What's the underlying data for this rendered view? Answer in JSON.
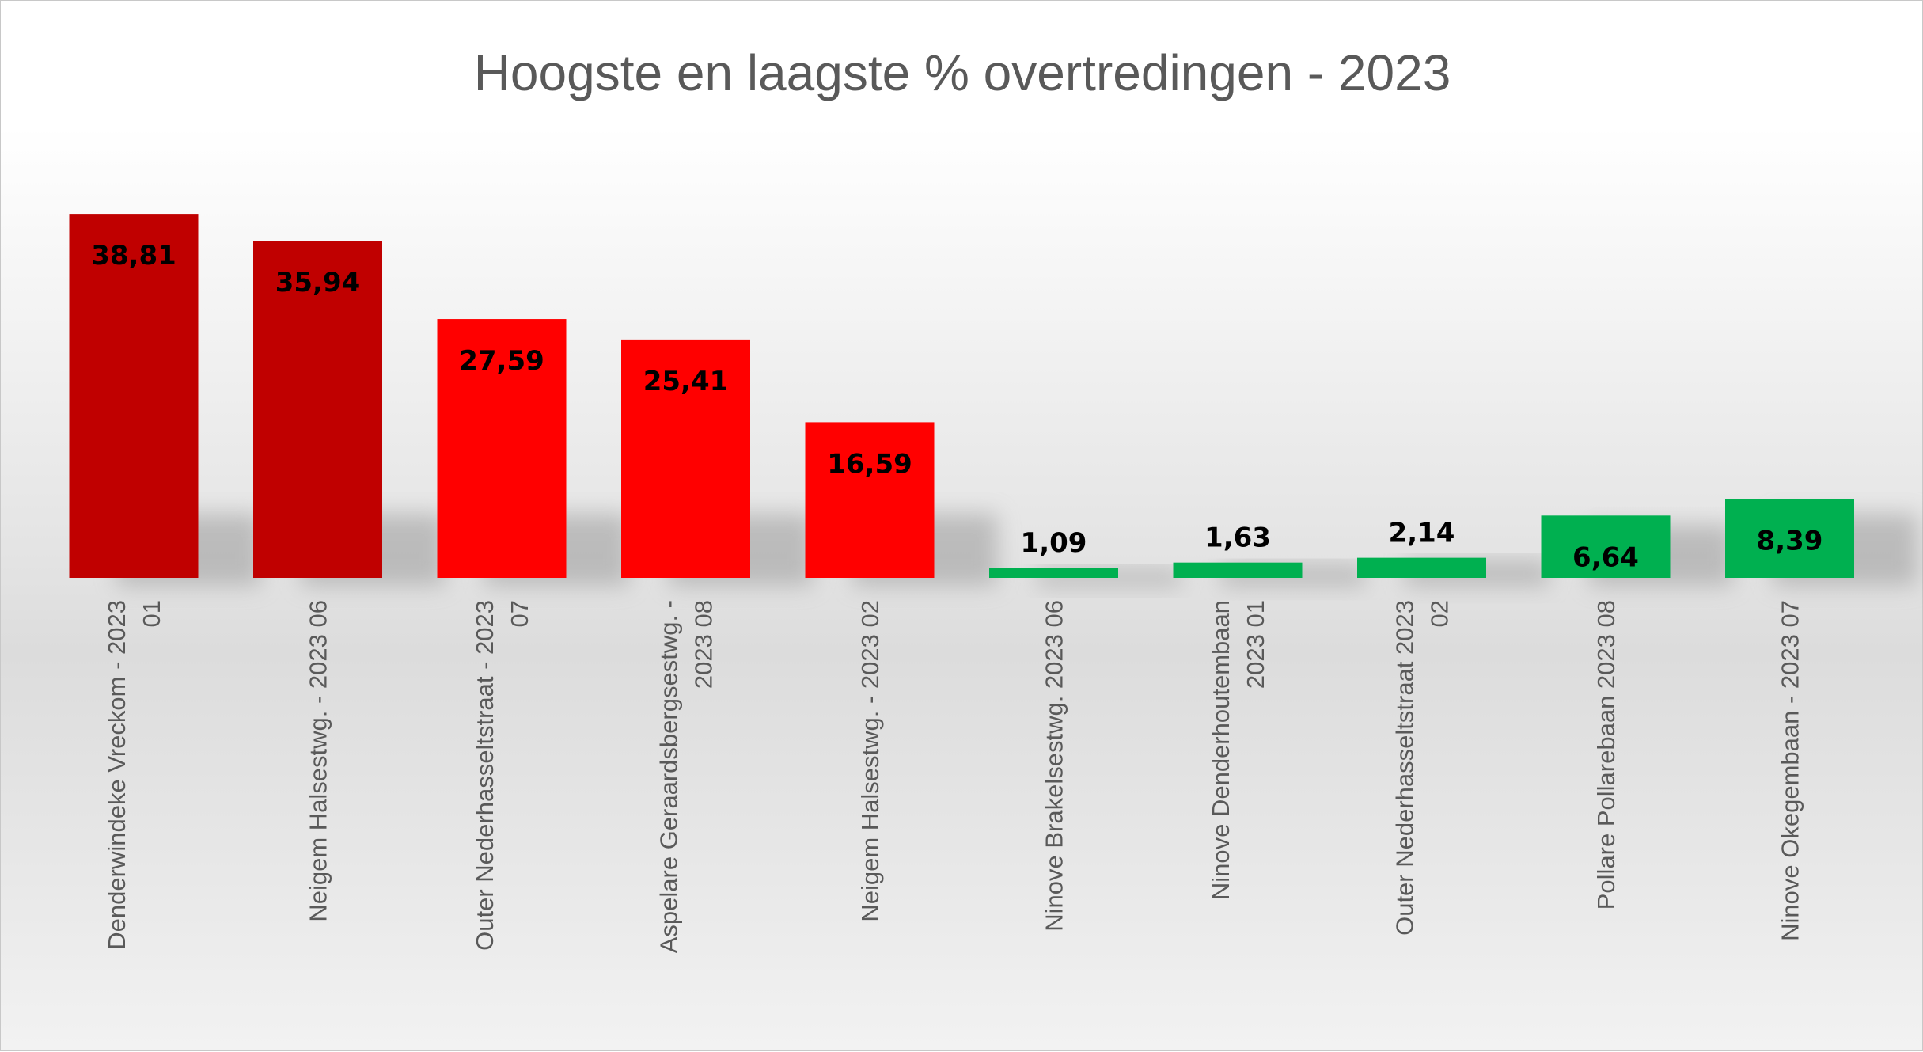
{
  "chart_data": {
    "type": "bar",
    "title": "Hoogste en laagste % overtredingen - 2023",
    "xlabel": "",
    "ylabel": "",
    "ylim": [
      0,
      40
    ],
    "grid": false,
    "legend": "none",
    "categories": [
      [
        "Denderwindeke Vreckom - 2023",
        "01"
      ],
      [
        "Neigem Halsestwg. - 2023 06"
      ],
      [
        "Outer Nederhasseltstraat - 2023",
        "07"
      ],
      [
        "Aspelare Geraardsbergsestwg. -",
        "2023 08"
      ],
      [
        "Neigem Halsestwg. - 2023 02"
      ],
      [
        "Ninove Brakelsestwg. 2023 06"
      ],
      [
        "Ninove Denderhoutembaan",
        "2023 01"
      ],
      [
        "Outer Nederhasseltstraat 2023",
        "02"
      ],
      [
        "Pollare Pollarebaan 2023 08"
      ],
      [
        "Ninove Okegembaan - 2023 07"
      ]
    ],
    "values": [
      38.81,
      35.94,
      27.59,
      25.41,
      16.59,
      1.09,
      1.63,
      2.14,
      6.64,
      8.39
    ],
    "value_labels": [
      "38,81",
      "35,94",
      "27,59",
      "25,41",
      "16,59",
      "1,09",
      "1,63",
      "2,14",
      "6,64",
      "8,39"
    ],
    "colors": [
      "#c00000",
      "#c00000",
      "#ff0000",
      "#ff0000",
      "#ff0000",
      "#00b050",
      "#00b050",
      "#00b050",
      "#00b050",
      "#00b050"
    ],
    "label_position": [
      "inside-top",
      "inside-top",
      "inside-top",
      "inside-top",
      "inside-top",
      "above",
      "above",
      "above",
      "inside-top",
      "inside-top"
    ]
  }
}
